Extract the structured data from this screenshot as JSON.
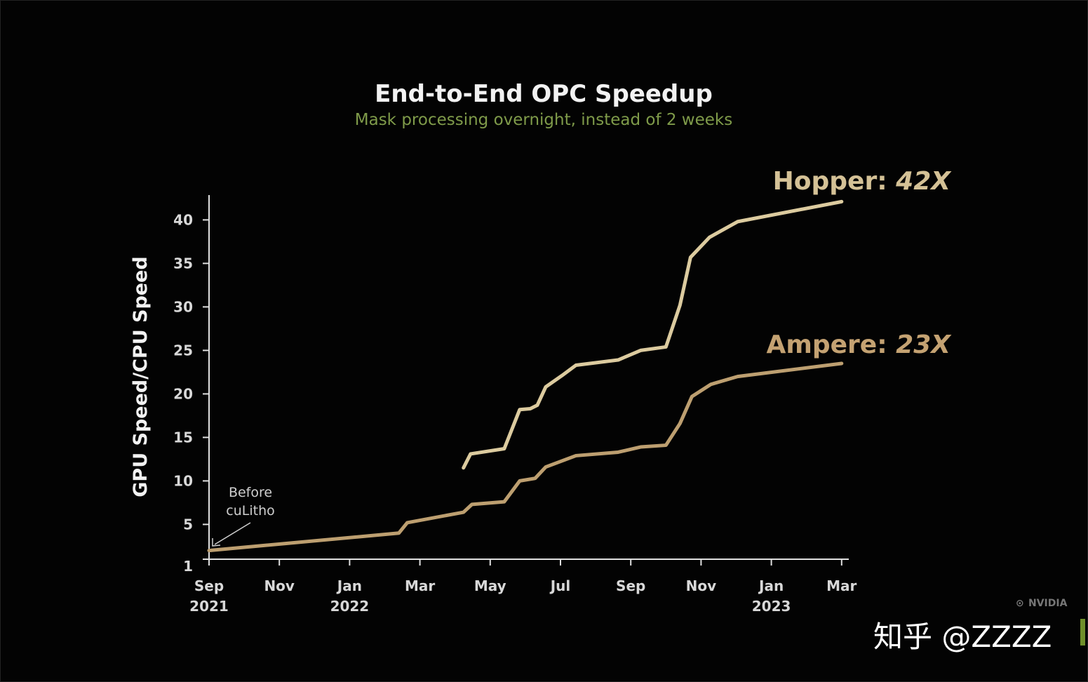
{
  "chart_data": {
    "type": "line",
    "title": "End-to-End OPC Speedup",
    "subtitle": "Mask processing overnight, instead of 2 weeks",
    "ylabel": "GPU Speed/CPU Speed",
    "xlabel": "",
    "ylim": [
      1,
      42
    ],
    "yticks": [
      1,
      5,
      10,
      15,
      20,
      25,
      30,
      35,
      40
    ],
    "x_unit": "months since Sep 2021",
    "xlim": [
      0,
      18
    ],
    "xticks": [
      {
        "m": 0,
        "label": "Sep",
        "year": "2021"
      },
      {
        "m": 2,
        "label": "Nov",
        "year": ""
      },
      {
        "m": 4,
        "label": "Jan",
        "year": "2022"
      },
      {
        "m": 6,
        "label": "Mar",
        "year": ""
      },
      {
        "m": 8,
        "label": "May",
        "year": ""
      },
      {
        "m": 10,
        "label": "Jul",
        "year": ""
      },
      {
        "m": 12,
        "label": "Sep",
        "year": ""
      },
      {
        "m": 14,
        "label": "Nov",
        "year": ""
      },
      {
        "m": 16,
        "label": "Jan",
        "year": "2023"
      },
      {
        "m": 18,
        "label": "Mar",
        "year": ""
      }
    ],
    "grid": false,
    "series": [
      {
        "name": "Hopper",
        "label": "Hopper: ",
        "label_value": "42X",
        "color": "#dccb9f",
        "label_color": "#d4c196",
        "points": [
          [
            7.24,
            11.5
          ],
          [
            7.44,
            13.1
          ],
          [
            8.4,
            13.7
          ],
          [
            8.84,
            18.2
          ],
          [
            9.14,
            18.3
          ],
          [
            9.34,
            18.7
          ],
          [
            9.58,
            20.8
          ],
          [
            10.04,
            22.1
          ],
          [
            10.44,
            23.3
          ],
          [
            11.64,
            23.9
          ],
          [
            12.28,
            25.0
          ],
          [
            13.0,
            25.4
          ],
          [
            13.4,
            30.2
          ],
          [
            13.7,
            35.7
          ],
          [
            14.24,
            38.0
          ],
          [
            15.04,
            39.8
          ],
          [
            18.0,
            42.1
          ]
        ]
      },
      {
        "name": "Ampere",
        "label": "Ampere: ",
        "label_value": "23X",
        "color": "#bd9f70",
        "label_color": "#c4a272",
        "points": [
          [
            0,
            2.0
          ],
          [
            5.4,
            4.0
          ],
          [
            5.64,
            5.2
          ],
          [
            7.24,
            6.4
          ],
          [
            7.48,
            7.3
          ],
          [
            8.4,
            7.6
          ],
          [
            8.84,
            10.0
          ],
          [
            9.28,
            10.3
          ],
          [
            9.58,
            11.6
          ],
          [
            10.44,
            12.9
          ],
          [
            11.64,
            13.3
          ],
          [
            12.28,
            13.9
          ],
          [
            13.0,
            14.1
          ],
          [
            13.4,
            16.6
          ],
          [
            13.74,
            19.7
          ],
          [
            14.28,
            21.1
          ],
          [
            15.04,
            22.0
          ],
          [
            18.0,
            23.5
          ]
        ]
      }
    ],
    "annotations": [
      {
        "line1": "Before",
        "line2": "cuLitho",
        "at": [
          0,
          2.0
        ]
      }
    ]
  },
  "logo_text": "NVIDIA",
  "watermark": "知乎 @ZZZZ"
}
